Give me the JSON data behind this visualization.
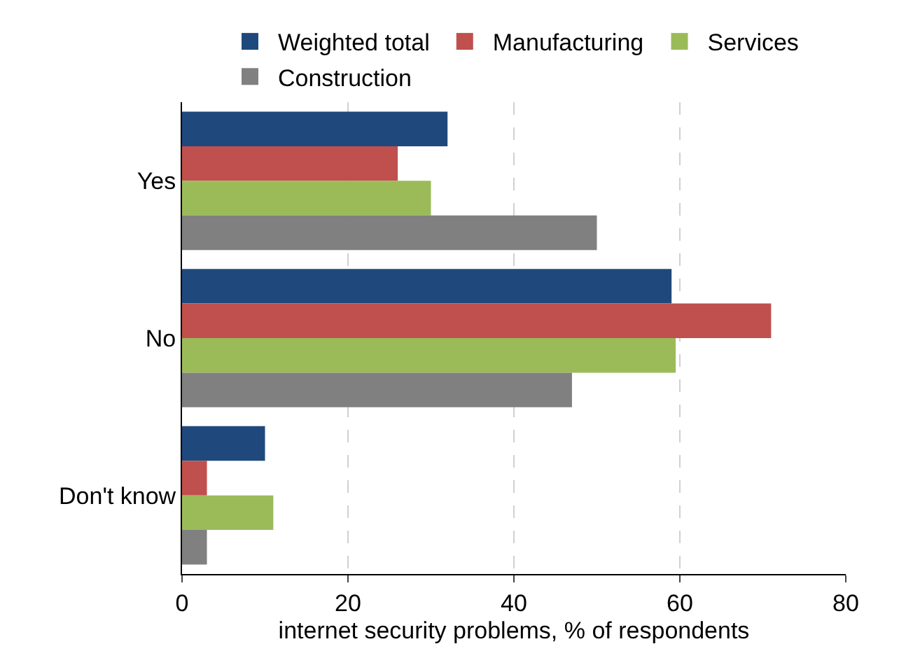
{
  "chart_data": {
    "type": "bar",
    "orientation": "horizontal",
    "categories": [
      "Yes",
      "No",
      "Don't know"
    ],
    "series": [
      {
        "name": "Weighted total",
        "color": "#1f497d",
        "values": [
          32,
          59,
          10
        ]
      },
      {
        "name": "Manufacturing",
        "color": "#c0504d",
        "values": [
          26,
          71,
          3
        ]
      },
      {
        "name": "Services",
        "color": "#9bbb59",
        "values": [
          30,
          59.5,
          11
        ]
      },
      {
        "name": "Construction",
        "color": "#808080",
        "values": [
          50,
          47,
          3
        ]
      }
    ],
    "xlabel": "internet security problems, % of respondents",
    "xlim": [
      0,
      80
    ],
    "xticks": [
      0,
      20,
      40,
      60,
      80
    ],
    "grid": "x",
    "legend": "top"
  }
}
